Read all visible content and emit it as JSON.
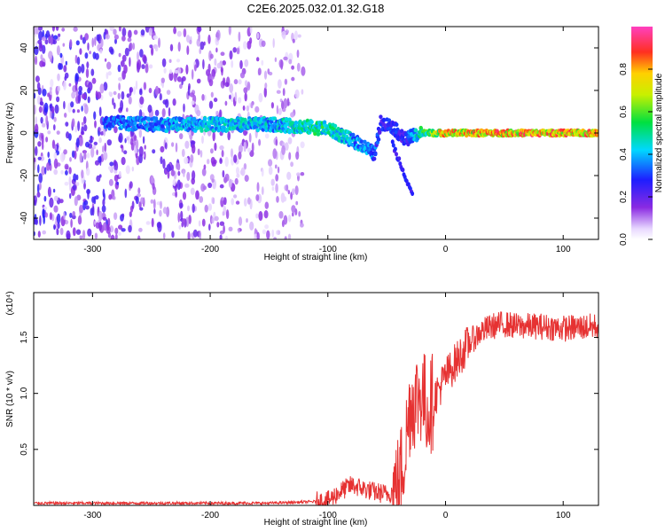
{
  "figure": {
    "title": "C2E6.2025.032.01.32.G18"
  },
  "chart_data": [
    {
      "type": "heatmap",
      "title": "C2E6.2025.032.01.32.G18",
      "xlabel": "Height of straight line (km)",
      "ylabel": "Frequency (Hz)",
      "xlim": [
        -350,
        130
      ],
      "ylim": [
        -50,
        50
      ],
      "xticks": [
        -300,
        -200,
        -100,
        0,
        100
      ],
      "yticks": [
        -40,
        -20,
        0,
        20,
        40
      ],
      "colorbar": {
        "label": "Normalized spectral amplitude",
        "range": [
          0,
          1
        ],
        "ticks": [
          0.0,
          0.2,
          0.4,
          0.6,
          0.8
        ],
        "tick_labels": [
          "0.0",
          "0.2",
          "0.4",
          "0.6",
          "0.8"
        ],
        "colormap": "rainbow (white-violet-blue-cyan-green-yellow-red)"
      },
      "ridge": {
        "description": "main frequency trace",
        "x": [
          -290,
          -250,
          -200,
          -150,
          -120,
          -100,
          -85,
          -70,
          -60,
          -55,
          -45,
          -35,
          -20,
          0,
          50,
          100,
          130
        ],
        "y": [
          5,
          4,
          4,
          4,
          3,
          2,
          -2,
          -6,
          -10,
          5,
          3,
          -3,
          0,
          0,
          0,
          0,
          0
        ],
        "amplitude": [
          0.4,
          0.45,
          0.5,
          0.5,
          0.55,
          0.6,
          0.5,
          0.45,
          0.4,
          0.3,
          0.35,
          0.3,
          0.6,
          0.9,
          0.95,
          0.95,
          0.95
        ]
      }
    },
    {
      "type": "line",
      "xlabel": "Height of straight line (km)",
      "ylabel": "SNR (10 * v/v)",
      "y_multiplier": "(x10⁴)",
      "xlim": [
        -350,
        130
      ],
      "ylim": [
        0,
        1.9
      ],
      "xticks": [
        -300,
        -200,
        -100,
        0,
        100
      ],
      "yticks": [
        0.5,
        1.0,
        1.5
      ],
      "ytick_labels": [
        "0.5",
        "1.0",
        "1.5"
      ],
      "color": "#e63232",
      "series": [
        {
          "x": [
            -350,
            -300,
            -250,
            -200,
            -150,
            -120,
            -100,
            -90,
            -80,
            -70,
            -60,
            -50,
            -45,
            -40,
            -35,
            -30,
            -25,
            -20,
            -15,
            -10,
            -5,
            0,
            10,
            20,
            30,
            40,
            50,
            60,
            80,
            100,
            130
          ],
          "values": [
            0.02,
            0.02,
            0.02,
            0.02,
            0.02,
            0.03,
            0.04,
            0.12,
            0.18,
            0.15,
            0.12,
            0.1,
            0.12,
            0.2,
            0.45,
            0.9,
            0.95,
            1.0,
            0.85,
            0.95,
            1.05,
            1.15,
            1.3,
            1.45,
            1.55,
            1.6,
            1.62,
            1.6,
            1.6,
            1.58,
            1.6
          ]
        }
      ]
    }
  ]
}
